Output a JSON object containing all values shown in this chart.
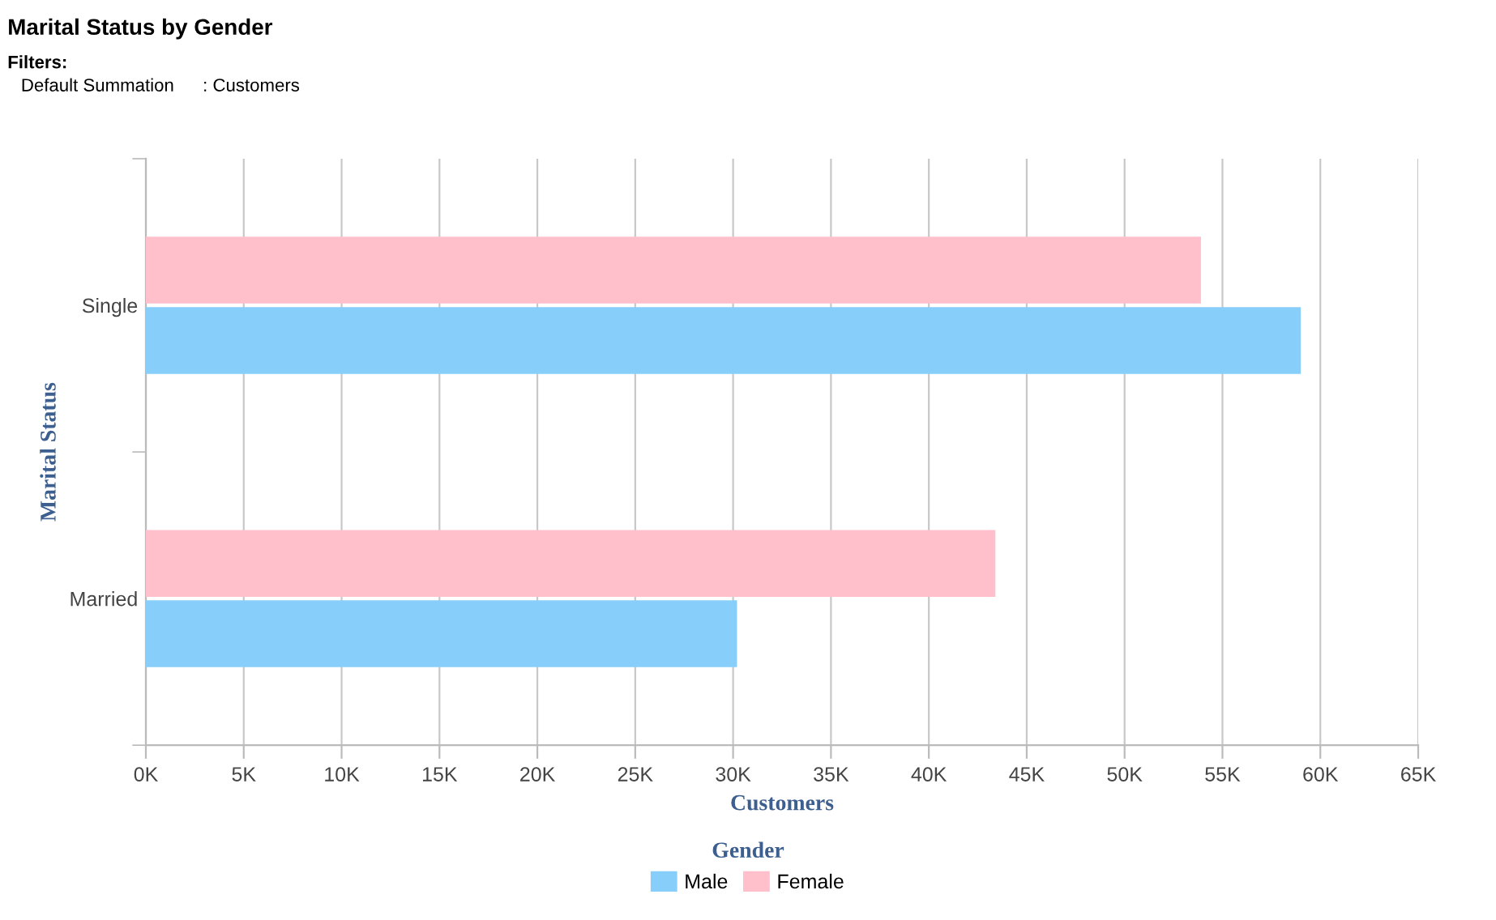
{
  "chart_data": {
    "type": "bar",
    "orientation": "horizontal",
    "title": "Marital Status by Gender",
    "annotations": [
      "Filters:",
      "Default Summation",
      ": Customers"
    ],
    "xlabel": "Customers",
    "ylabel": "Marital Status",
    "legend_title": "Gender",
    "categories": [
      "Single",
      "Married"
    ],
    "series": [
      {
        "name": "Male",
        "color": "#87cefa",
        "values": [
          59000,
          30200
        ]
      },
      {
        "name": "Female",
        "color": "#ffc0cb",
        "values": [
          53900,
          43400
        ]
      }
    ],
    "xlim": [
      0,
      65000
    ],
    "xticks": [
      {
        "value": 0,
        "label": "0K"
      },
      {
        "value": 5000,
        "label": "5K"
      },
      {
        "value": 10000,
        "label": "10K"
      },
      {
        "value": 15000,
        "label": "15K"
      },
      {
        "value": 20000,
        "label": "20K"
      },
      {
        "value": 25000,
        "label": "25K"
      },
      {
        "value": 30000,
        "label": "30K"
      },
      {
        "value": 35000,
        "label": "35K"
      },
      {
        "value": 40000,
        "label": "40K"
      },
      {
        "value": 45000,
        "label": "45K"
      },
      {
        "value": 50000,
        "label": "50K"
      },
      {
        "value": 55000,
        "label": "55K"
      },
      {
        "value": 60000,
        "label": "60K"
      },
      {
        "value": 65000,
        "label": "65K"
      }
    ],
    "grid": "x",
    "legend": "bottom"
  }
}
